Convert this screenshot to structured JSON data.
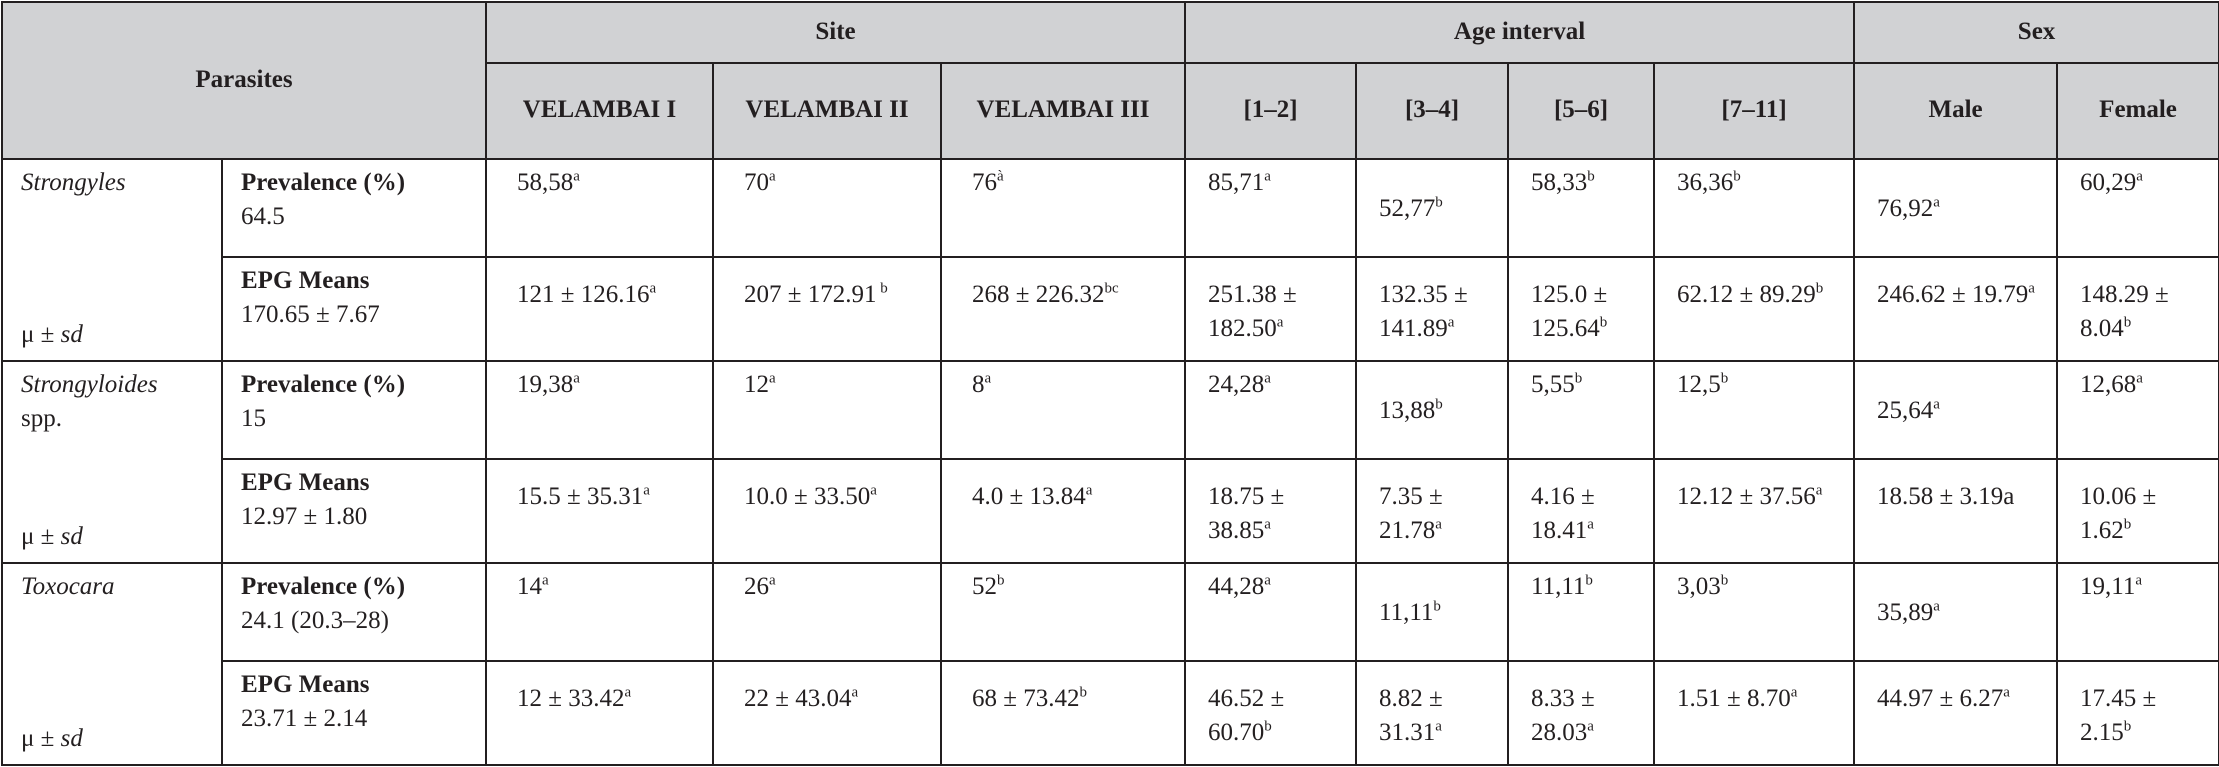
{
  "header": {
    "parasites": "Parasites",
    "site": "Site",
    "age_interval": "Age interval",
    "sex": "Sex",
    "sites": [
      "VELAMBAI I",
      "VELAMBAI II",
      "VELAMBAI III"
    ],
    "ages": [
      "[1–2]",
      "[3–4]",
      "[5–6]",
      "[7–11]"
    ],
    "sexes": [
      "Male",
      "Female"
    ]
  },
  "musd": {
    "mu": "μ ±",
    "sd": "sd"
  },
  "parasites": [
    {
      "name": "Strongyles",
      "prev_label": "Prevalence (%)",
      "prev_pooled": "64.5",
      "prev_values": [
        {
          "v": "58,58",
          "s": "a"
        },
        {
          "v": "70",
          "s": "a"
        },
        {
          "v": "76",
          "s": "à"
        },
        {
          "v": "85,71",
          "s": "a"
        },
        {
          "v": "52,77",
          "s": "b"
        },
        {
          "v": "58,33",
          "s": "b"
        },
        {
          "v": "36,36",
          "s": "b"
        },
        {
          "v": "76,92",
          "s": "a"
        },
        {
          "v": "60,29",
          "s": "a"
        }
      ],
      "epg_label": "EPG Means",
      "epg_pooled": "170.65 ± 7.67",
      "epg_values": [
        {
          "v": "121 ± 126.16",
          "s": "a"
        },
        {
          "v": "207 ± 172.91",
          "s": " b"
        },
        {
          "v": "268 ± 226.32",
          "s": "bc"
        },
        {
          "v": "251.38 ± 182.50",
          "s": "a"
        },
        {
          "v": "132.35 ± 141.89",
          "s": "a"
        },
        {
          "v": "125.0 ± 125.64",
          "s": "b"
        },
        {
          "v": "62.12 ± 89.29",
          "s": "b"
        },
        {
          "v": "246.62 ± 19.79",
          "s": "a"
        },
        {
          "v": "148.29 ± 8.04",
          "s": "b"
        }
      ]
    },
    {
      "name": "Strongyloides",
      "name_extra": "spp.",
      "prev_label": "Prevalence (%)",
      "prev_pooled": "15",
      "prev_values": [
        {
          "v": "19,38",
          "s": "a"
        },
        {
          "v": "12",
          "s": "a"
        },
        {
          "v": "8",
          "s": "a"
        },
        {
          "v": "24,28",
          "s": "a"
        },
        {
          "v": "13,88",
          "s": "b"
        },
        {
          "v": "5,55",
          "s": "b"
        },
        {
          "v": "12,5",
          "s": "b"
        },
        {
          "v": "25,64",
          "s": "a"
        },
        {
          "v": "12,68",
          "s": "a"
        }
      ],
      "epg_label": "EPG Means",
      "epg_pooled": "12.97 ± 1.80",
      "epg_values": [
        {
          "v": "15.5 ± 35.31",
          "s": "a"
        },
        {
          "v": "10.0 ± 33.50",
          "s": "a"
        },
        {
          "v": "4.0 ± 13.84",
          "s": "a"
        },
        {
          "v": "18.75 ± 38.85",
          "s": "a"
        },
        {
          "v": "7.35 ± 21.78",
          "s": "a"
        },
        {
          "v": "4.16 ± 18.41",
          "s": "a"
        },
        {
          "v": "12.12 ± 37.56",
          "s": "a"
        },
        {
          "v": "18.58 ± 3.19a",
          "s": ""
        },
        {
          "v": "10.06 ± 1.62",
          "s": "b"
        }
      ]
    },
    {
      "name": "Toxocara",
      "prev_label": "Prevalence (%)",
      "prev_pooled": "24.1 (20.3–28)",
      "prev_values": [
        {
          "v": "14",
          "s": "a"
        },
        {
          "v": "26",
          "s": "a"
        },
        {
          "v": "52",
          "s": "b"
        },
        {
          "v": "44,28",
          "s": "a"
        },
        {
          "v": "11,11",
          "s": "b"
        },
        {
          "v": "11,11",
          "s": "b"
        },
        {
          "v": "3,03",
          "s": "b"
        },
        {
          "v": "35,89",
          "s": "a"
        },
        {
          "v": "19,11",
          "s": "a"
        }
      ],
      "epg_label": "EPG Means",
      "epg_pooled": "23.71 ± 2.14",
      "epg_values": [
        {
          "v": "12 ± 33.42",
          "s": "a"
        },
        {
          "v": "22 ± 43.04",
          "s": "a"
        },
        {
          "v": "68 ± 73.42",
          "s": "b"
        },
        {
          "v": "46.52 ± 60.70",
          "s": "b"
        },
        {
          "v": "8.82 ± 31.31",
          "s": "a"
        },
        {
          "v": "8.33 ± 28.03",
          "s": "a"
        },
        {
          "v": "1.51 ± 8.70",
          "s": "a"
        },
        {
          "v": "44.97 ± 6.27",
          "s": "a"
        },
        {
          "v": "17.45 ± 2.15",
          "s": "b"
        }
      ]
    }
  ]
}
